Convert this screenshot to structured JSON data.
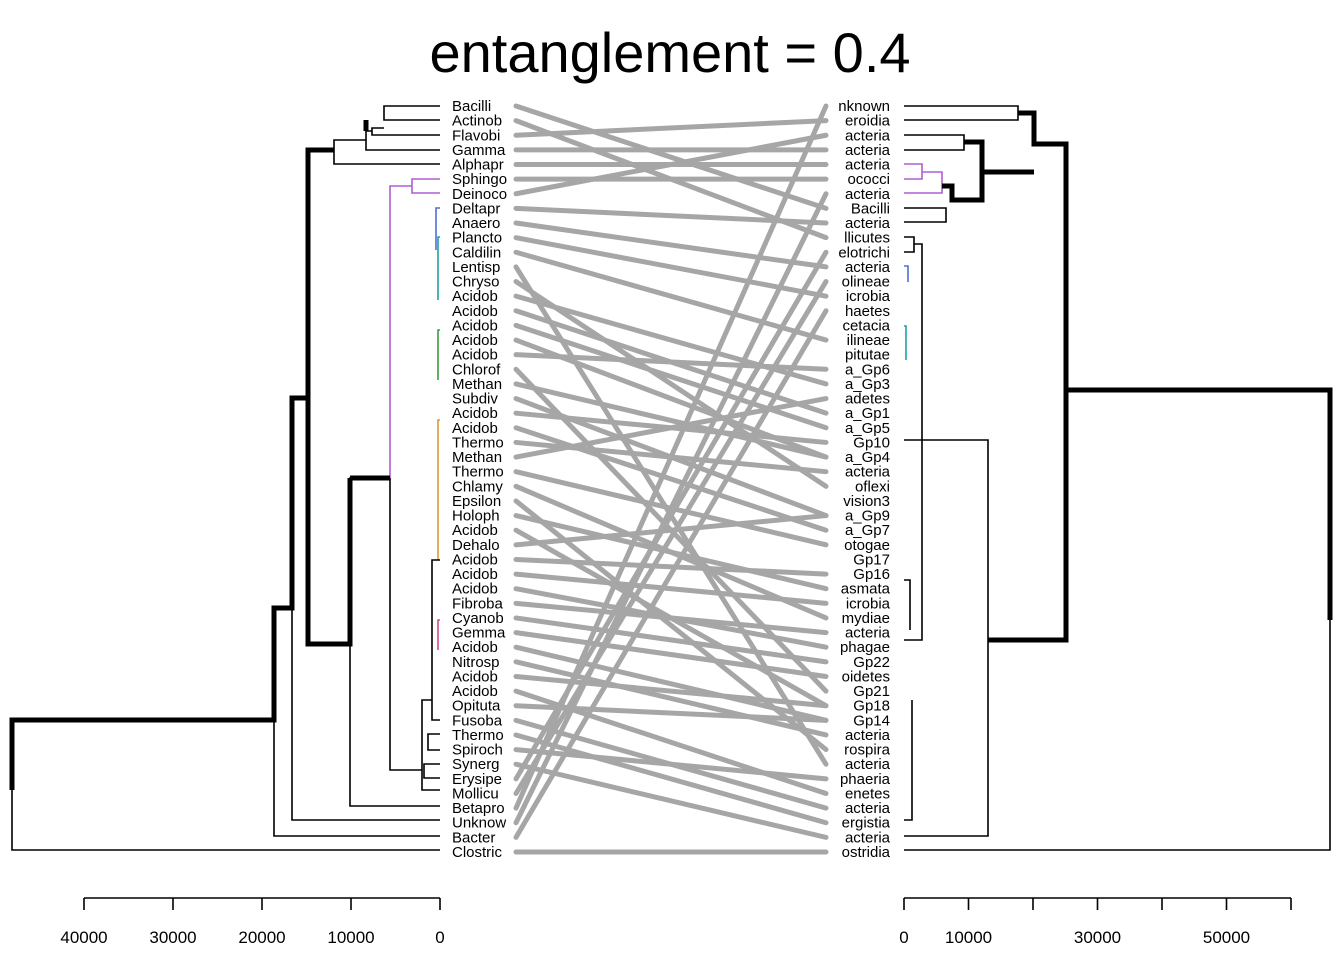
{
  "chart_data": {
    "type": "tanglegram",
    "title": "entanglement = 0.4",
    "left_leaves": [
      "Bacilli",
      "Actinob",
      "Flavobi",
      "Gamma",
      "Alphapr",
      "Sphingo",
      "Deinoco",
      "Deltapr",
      "Anaero",
      "Plancto",
      "Caldilin",
      "Lentisp",
      "Chryso",
      "Acidob",
      "Acidob",
      "Acidob",
      "Acidob",
      "Acidob",
      "Chlorof",
      "Methan",
      "Subdiv",
      "Acidob",
      "Acidob",
      "Thermo",
      "Methan",
      "Thermo",
      "Chlamy",
      "Epsilon",
      "Holoph",
      "Acidob",
      "Dehalo",
      "Acidob",
      "Acidob",
      "Acidob",
      "Fibroba",
      "Cyanob",
      "Gemma",
      "Acidob",
      "Nitrosp",
      "Acidob",
      "Acidob",
      "Opituta",
      "Fusoba",
      "Thermo",
      "Spiroch",
      "Synerg",
      "Erysipe",
      "Mollicu",
      "Betapro",
      "Unknow",
      "Bacter",
      "Clostric"
    ],
    "right_leaves": [
      "nknown",
      "eroidia",
      "acteria",
      "acteria",
      "acteria",
      "ococci",
      "acteria",
      "Bacilli",
      "acteria",
      "llicutes",
      "elotrichi",
      "acteria",
      "olineae",
      "icrobia",
      "haetes",
      "cetacia",
      "ilineae",
      "pitutae",
      "a_Gp6",
      "a_Gp3",
      "adetes",
      "a_Gp1",
      "a_Gp5",
      "Gp10",
      "a_Gp4",
      "acteria",
      "oflexi",
      "vision3",
      "a_Gp9",
      "a_Gp7",
      "otogae",
      "Gp17",
      "Gp16",
      "asmata",
      "icrobia",
      "mydiae",
      "acteria",
      "phagae",
      "Gp22",
      "oidetes",
      "Gp21",
      "Gp18",
      "Gp14",
      "acteria",
      "rospira",
      "acteria",
      "phaeria",
      "enetes",
      "acteria",
      "ergistia",
      "acteria",
      "ostridia"
    ],
    "connections": [
      [
        0,
        7
      ],
      [
        1,
        9
      ],
      [
        2,
        1
      ],
      [
        3,
        3
      ],
      [
        4,
        4
      ],
      [
        5,
        5
      ],
      [
        6,
        2
      ],
      [
        7,
        8
      ],
      [
        8,
        11
      ],
      [
        9,
        13
      ],
      [
        10,
        16
      ],
      [
        11,
        45
      ],
      [
        12,
        26
      ],
      [
        13,
        19
      ],
      [
        14,
        21
      ],
      [
        15,
        22
      ],
      [
        16,
        24
      ],
      [
        17,
        18
      ],
      [
        18,
        40
      ],
      [
        19,
        24
      ],
      [
        20,
        28
      ],
      [
        21,
        23
      ],
      [
        22,
        29
      ],
      [
        23,
        25
      ],
      [
        24,
        20
      ],
      [
        25,
        30
      ],
      [
        26,
        35
      ],
      [
        27,
        44
      ],
      [
        28,
        33
      ],
      [
        29,
        41
      ],
      [
        30,
        28
      ],
      [
        31,
        32
      ],
      [
        32,
        34
      ],
      [
        33,
        37
      ],
      [
        34,
        36
      ],
      [
        35,
        38
      ],
      [
        36,
        39
      ],
      [
        37,
        42
      ],
      [
        38,
        43
      ],
      [
        39,
        41
      ],
      [
        40,
        47
      ],
      [
        41,
        42
      ],
      [
        42,
        48
      ],
      [
        43,
        49
      ],
      [
        44,
        46
      ],
      [
        45,
        50
      ],
      [
        46,
        10
      ],
      [
        47,
        12
      ],
      [
        48,
        0
      ],
      [
        49,
        6
      ],
      [
        50,
        14
      ],
      [
        51,
        51
      ]
    ],
    "left_axis": {
      "ticks": [
        40000,
        30000,
        20000,
        10000,
        0
      ]
    },
    "right_axis": {
      "ticks": [
        0,
        10000,
        30000,
        50000
      ]
    },
    "colors": {
      "line": "#a6a6a6",
      "branch": "#000000",
      "purple": "#b05dd1",
      "blue": "#4d6fd8",
      "teal": "#21a0a0",
      "green": "#3a9d3a",
      "orange": "#d99a3a",
      "pink": "#d14d8c"
    }
  }
}
